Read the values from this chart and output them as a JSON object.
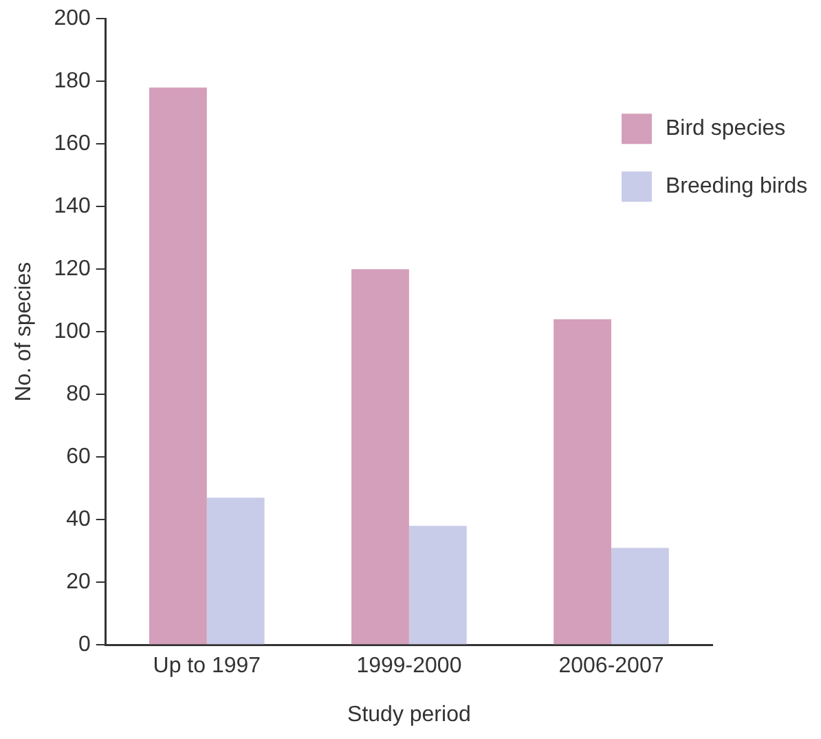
{
  "chart_data": {
    "type": "bar",
    "xlabel": "Study period",
    "ylabel": "No. of species",
    "categories": [
      "Up to 1997",
      "1999-2000",
      "2006-2007"
    ],
    "series": [
      {
        "name": "Bird species",
        "color": "#d49fba",
        "values": [
          178,
          120,
          104
        ]
      },
      {
        "name": "Breeding birds",
        "color": "#c8cce8",
        "values": [
          47,
          38,
          31
        ]
      }
    ],
    "ylim": [
      0,
      200
    ],
    "yticks": [
      0,
      20,
      40,
      60,
      80,
      100,
      120,
      140,
      160,
      180,
      200
    ],
    "grid": false,
    "legend": "top right"
  }
}
